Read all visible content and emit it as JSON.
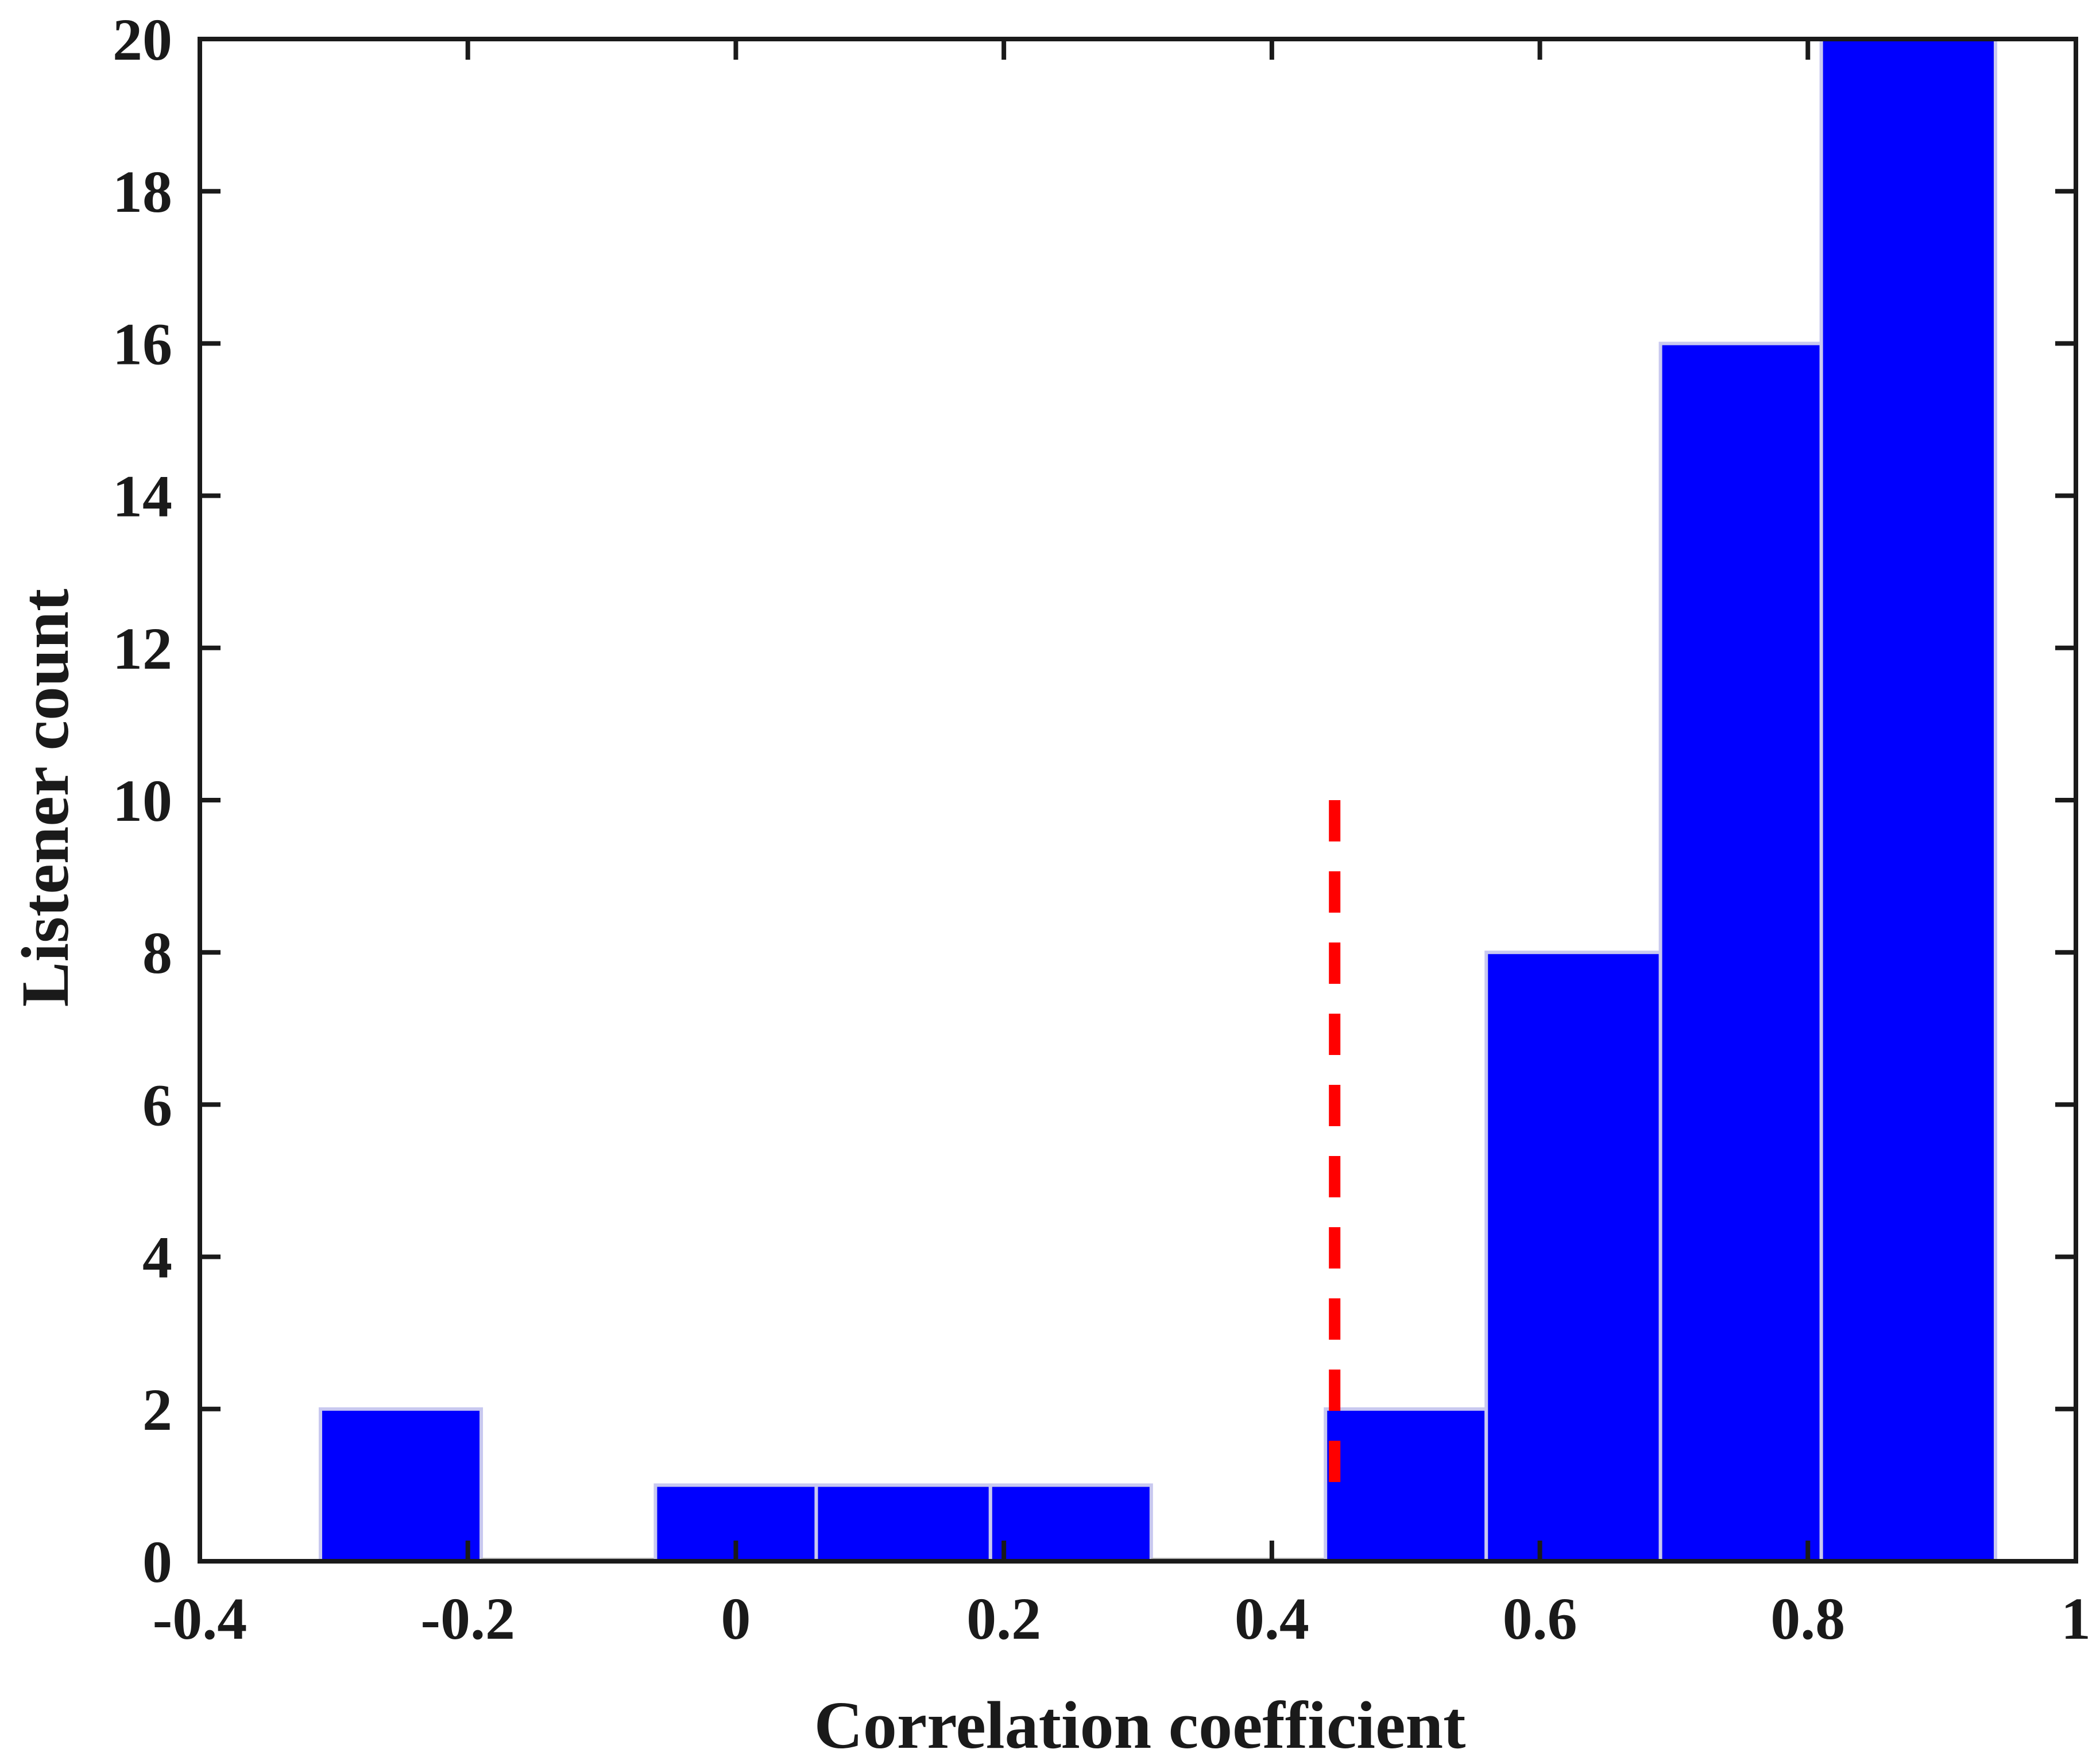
{
  "chart_data": {
    "type": "bar",
    "title": "",
    "xlabel": "Correlation coefficient",
    "ylabel": "Listener count",
    "xlim": [
      -0.4,
      1
    ],
    "ylim": [
      0,
      20
    ],
    "xticks": [
      -0.4,
      -0.2,
      0,
      0.2,
      0.4,
      0.6,
      0.8,
      1
    ],
    "xtick_labels": [
      "-0.4",
      "-0.2",
      "0",
      "0.2",
      "0.4",
      "0.6",
      "0.8",
      "1"
    ],
    "yticks": [
      0,
      2,
      4,
      6,
      8,
      10,
      12,
      14,
      16,
      18,
      20
    ],
    "ytick_labels": [
      "0",
      "2",
      "4",
      "6",
      "8",
      "10",
      "12",
      "14",
      "16",
      "18",
      "20"
    ],
    "bin_edges": [
      -0.31,
      -0.19,
      -0.06,
      0.06,
      0.19,
      0.31,
      0.44,
      0.56,
      0.69,
      0.81,
      0.94
    ],
    "values": [
      2,
      0,
      1,
      1,
      1,
      0,
      2,
      8,
      16,
      20
    ],
    "bar_color": "#0000ff",
    "bar_edge_color": "#c8c8f0",
    "threshold_line": {
      "x": 0.44,
      "y_range": [
        1,
        10
      ],
      "style": "dashed",
      "color": "#ff0000"
    },
    "grid": false,
    "legend": "none"
  }
}
